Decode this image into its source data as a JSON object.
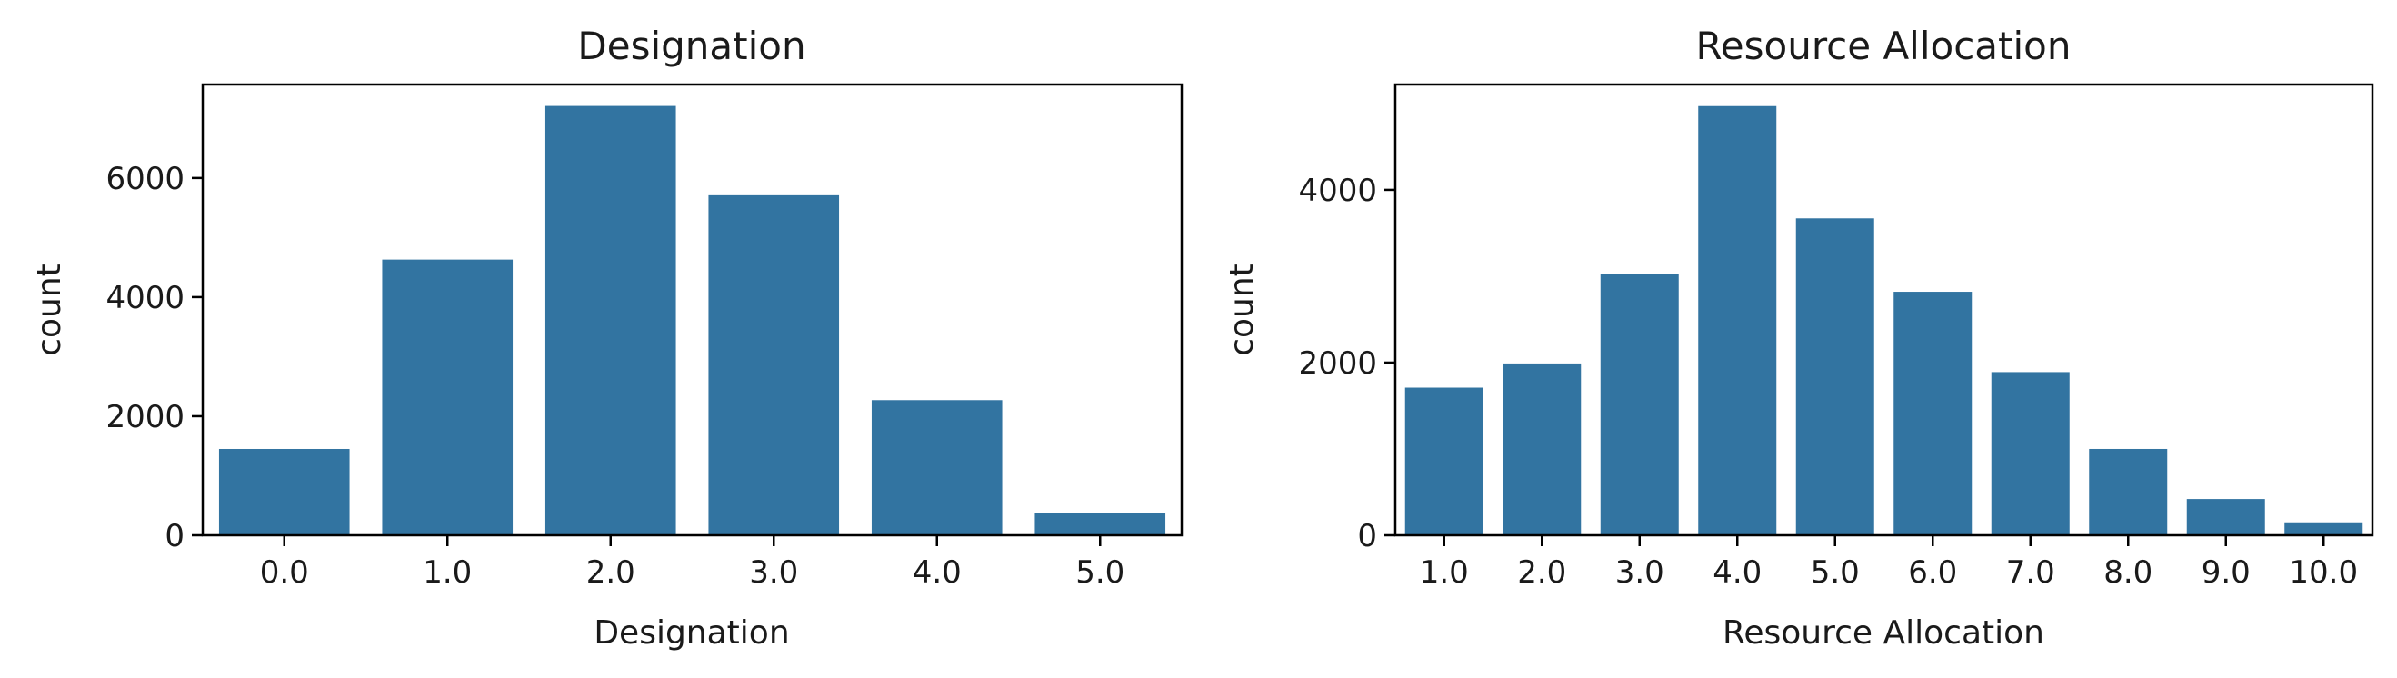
{
  "chart_data": [
    {
      "type": "bar",
      "title": "Designation",
      "xlabel": "Designation",
      "ylabel": "count",
      "categories": [
        "0.0",
        "1.0",
        "2.0",
        "3.0",
        "4.0",
        "5.0"
      ],
      "values": [
        1450,
        4630,
        7210,
        5710,
        2270,
        370
      ],
      "ylim": [
        0,
        7570
      ],
      "yticks": [
        0,
        2000,
        4000,
        6000
      ],
      "bar_color": "#3274a1",
      "grid": false
    },
    {
      "type": "bar",
      "title": "Resource Allocation",
      "xlabel": "Resource Allocation",
      "ylabel": "count",
      "categories": [
        "1.0",
        "2.0",
        "3.0",
        "4.0",
        "5.0",
        "6.0",
        "7.0",
        "8.0",
        "9.0",
        "10.0"
      ],
      "values": [
        1710,
        1990,
        3030,
        4970,
        3670,
        2820,
        1890,
        1000,
        420,
        150
      ],
      "ylim": [
        0,
        5220
      ],
      "yticks": [
        0,
        2000,
        4000
      ],
      "bar_color": "#3274a1",
      "grid": false
    }
  ]
}
